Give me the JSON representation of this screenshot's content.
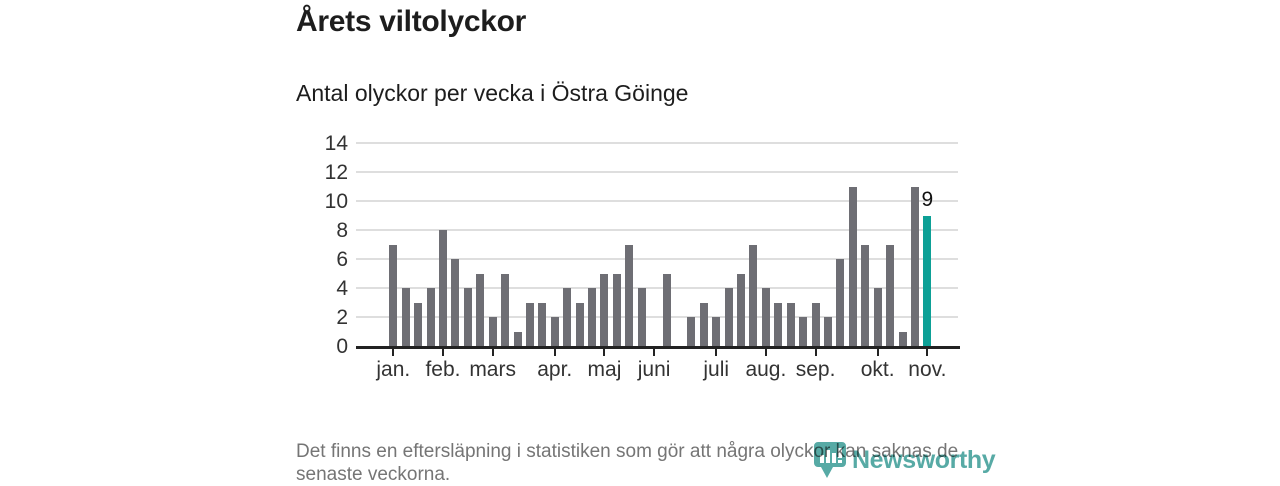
{
  "header": {
    "title": "Årets viltolyckor",
    "subtitle": "Antal olyckor per vecka i Östra Göinge"
  },
  "footer": {
    "line1": "Det finns en eftersläpning i statistiken som gör att några olyckor kan saknas de",
    "line2": "senaste veckorna."
  },
  "logo": {
    "name": "Newsworthy",
    "color": "#3f9e99"
  },
  "chart_data": {
    "type": "bar",
    "title": "Årets viltolyckor",
    "subtitle": "Antal olyckor per vecka i Östra Göinge",
    "x_description": "weeks of the year, January through November",
    "values": [
      7,
      4,
      3,
      4,
      8,
      6,
      4,
      5,
      2,
      5,
      1,
      3,
      3,
      2,
      4,
      3,
      4,
      5,
      5,
      7,
      4,
      0,
      5,
      0,
      2,
      3,
      2,
      4,
      5,
      7,
      4,
      3,
      3,
      2,
      3,
      2,
      6,
      11,
      7,
      4,
      7,
      1,
      11,
      9
    ],
    "bar_color": "#6e6e74",
    "highlight": {
      "week": 44,
      "value": 9,
      "label": "9",
      "color": "#0da096"
    },
    "ylim": [
      0,
      14
    ],
    "yticks": [
      0,
      2,
      4,
      6,
      8,
      10,
      12,
      14
    ],
    "month_ticks": [
      {
        "label": "jan.",
        "week": 1
      },
      {
        "label": "feb.",
        "week": 5
      },
      {
        "label": "mars",
        "week": 9
      },
      {
        "label": "apr.",
        "week": 14
      },
      {
        "label": "maj",
        "week": 18
      },
      {
        "label": "juni",
        "week": 22
      },
      {
        "label": "juli",
        "week": 27
      },
      {
        "label": "aug.",
        "week": 31
      },
      {
        "label": "sep.",
        "week": 35
      },
      {
        "label": "okt.",
        "week": 40
      },
      {
        "label": "nov.",
        "week": 44
      }
    ],
    "grid": true,
    "legend": "none"
  }
}
